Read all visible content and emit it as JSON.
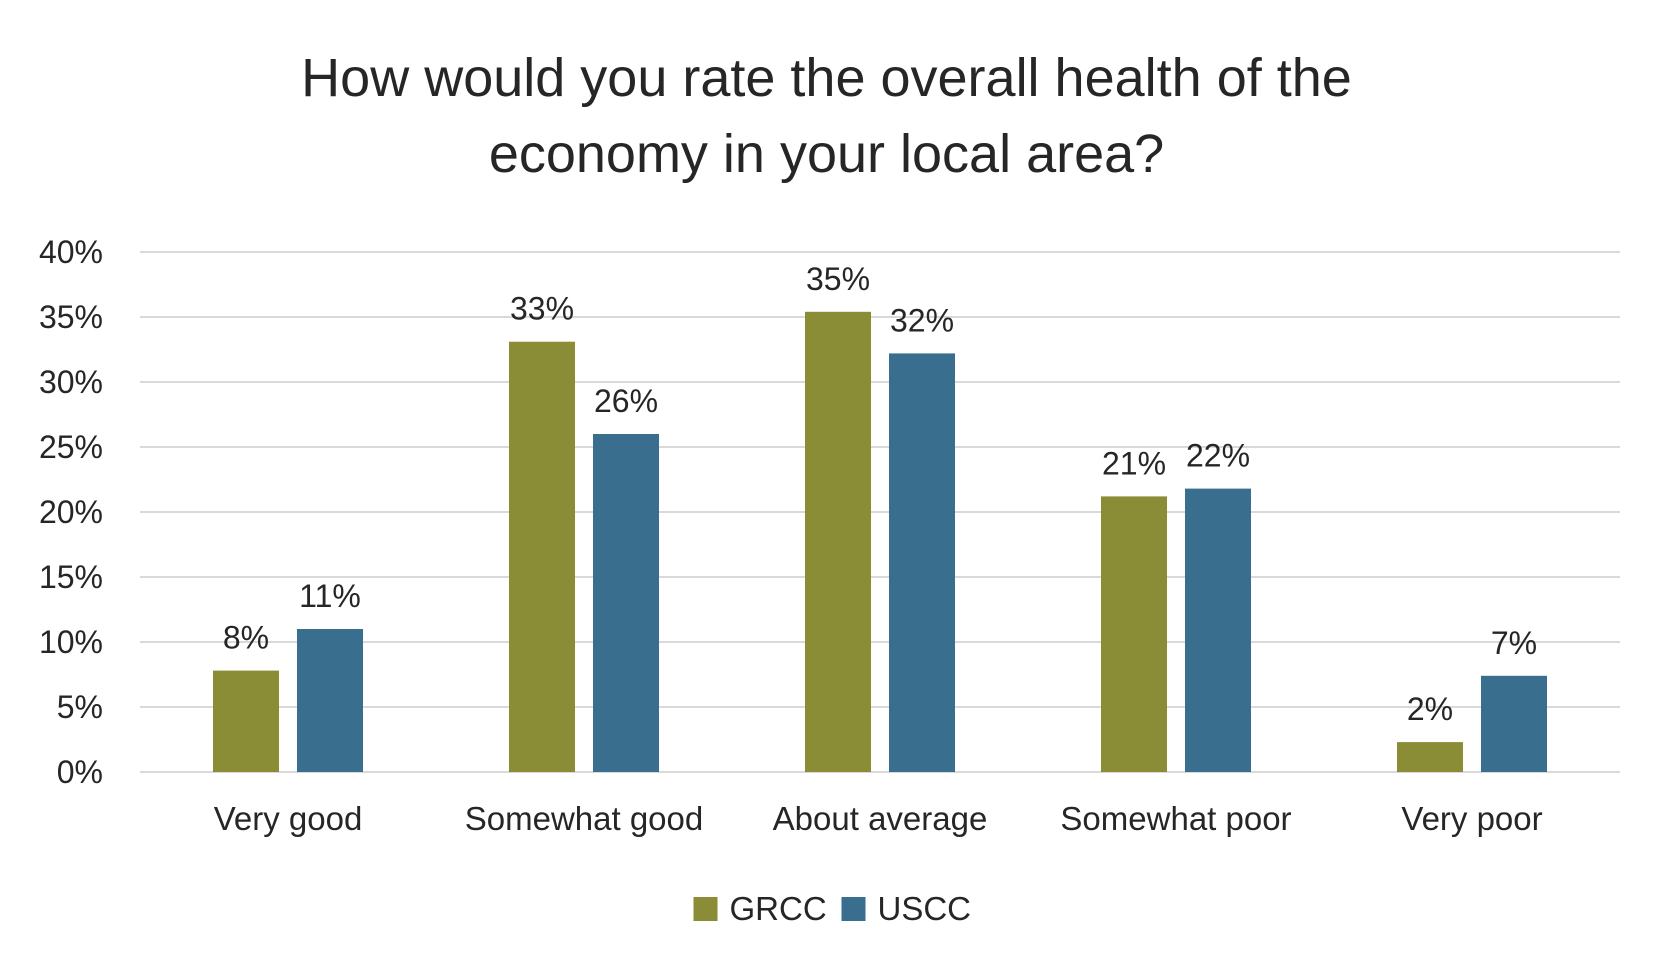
{
  "chart_data": {
    "type": "bar",
    "title": "How would you rate the overall health of the economy in your local area?",
    "categories": [
      "Very good",
      "Somewhat good",
      "About average",
      "Somewhat poor",
      "Very poor"
    ],
    "series": [
      {
        "name": "GRCC",
        "color": "#8A8D36",
        "values": [
          7.8,
          33.1,
          35.4,
          21.2,
          2.3
        ],
        "labels": [
          "8%",
          "33%",
          "35%",
          "21%",
          "2%"
        ]
      },
      {
        "name": "USCC",
        "color": "#3A6E8F",
        "values": [
          11.0,
          26.0,
          32.2,
          21.8,
          7.4
        ],
        "labels": [
          "11%",
          "26%",
          "32%",
          "22%",
          "7%"
        ]
      }
    ],
    "ylim": [
      0,
      40
    ],
    "yticks": [
      0,
      5,
      10,
      15,
      20,
      25,
      30,
      35,
      40
    ],
    "ytick_labels": [
      "0%",
      "5%",
      "10%",
      "15%",
      "20%",
      "25%",
      "30%",
      "35%",
      "40%"
    ],
    "xlabel": "",
    "ylabel": "",
    "grid": true,
    "grid_color": "#D9D9D9",
    "legend_position": "bottom"
  }
}
